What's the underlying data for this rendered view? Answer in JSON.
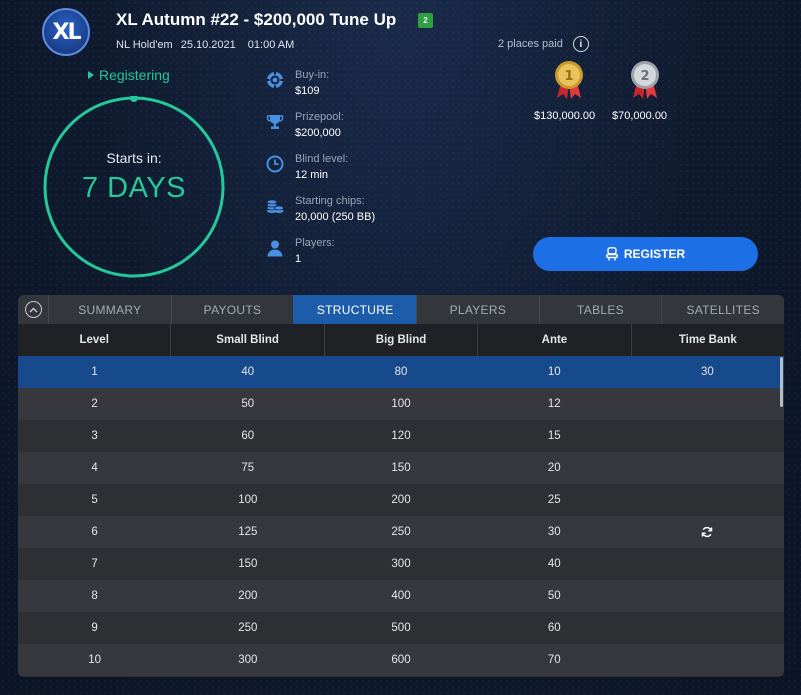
{
  "header": {
    "logo_text": "XL",
    "title": "XL Autumn #22 - $200,000 Tune Up",
    "reentry_badge": "2",
    "game_type": "NL Hold'em",
    "date": "25.10.2021",
    "time": "01:00 AM"
  },
  "status": {
    "label": "Registering",
    "color": "#24c89a"
  },
  "countdown": {
    "label": "Starts in:",
    "value": "7 DAYS"
  },
  "info": [
    {
      "icon": "poker-chip-icon",
      "label": "Buy-in:",
      "value": "$109"
    },
    {
      "icon": "trophy-icon",
      "label": "Prizepool:",
      "value": "$200,000"
    },
    {
      "icon": "clock-icon",
      "label": "Blind level:",
      "value": "12 min"
    },
    {
      "icon": "chip-stack-icon",
      "label": "Starting chips:",
      "value": "20,000 (250 BB)"
    },
    {
      "icon": "user-icon",
      "label": "Players:",
      "value": "1"
    }
  ],
  "prizes": {
    "places_paid": "2 places paid",
    "items": [
      {
        "place": "1",
        "amount": "$130,000.00",
        "medal": "gold-medal-icon"
      },
      {
        "place": "2",
        "amount": "$70,000.00",
        "medal": "silver-medal-icon"
      }
    ]
  },
  "register_button": {
    "label": "REGISTER",
    "color": "#1c6fe4"
  },
  "tabs": [
    {
      "label": "SUMMARY",
      "active": false
    },
    {
      "label": "PAYOUTS",
      "active": false
    },
    {
      "label": "STRUCTURE",
      "active": true
    },
    {
      "label": "PLAYERS",
      "active": false
    },
    {
      "label": "TABLES",
      "active": false
    },
    {
      "label": "SATELLITES",
      "active": false
    }
  ],
  "table": {
    "columns": [
      "Level",
      "Small Blind",
      "Big Blind",
      "Ante",
      "Time Bank"
    ],
    "rows": [
      [
        "1",
        "40",
        "80",
        "10",
        "30"
      ],
      [
        "2",
        "50",
        "100",
        "12",
        ""
      ],
      [
        "3",
        "60",
        "120",
        "15",
        ""
      ],
      [
        "4",
        "75",
        "150",
        "20",
        ""
      ],
      [
        "5",
        "100",
        "200",
        "25",
        ""
      ],
      [
        "6",
        "125",
        "250",
        "30",
        "refresh-icon"
      ],
      [
        "7",
        "150",
        "300",
        "40",
        ""
      ],
      [
        "8",
        "200",
        "400",
        "50",
        ""
      ],
      [
        "9",
        "250",
        "500",
        "60",
        ""
      ],
      [
        "10",
        "300",
        "600",
        "70",
        ""
      ]
    ],
    "selected_row": 0
  }
}
